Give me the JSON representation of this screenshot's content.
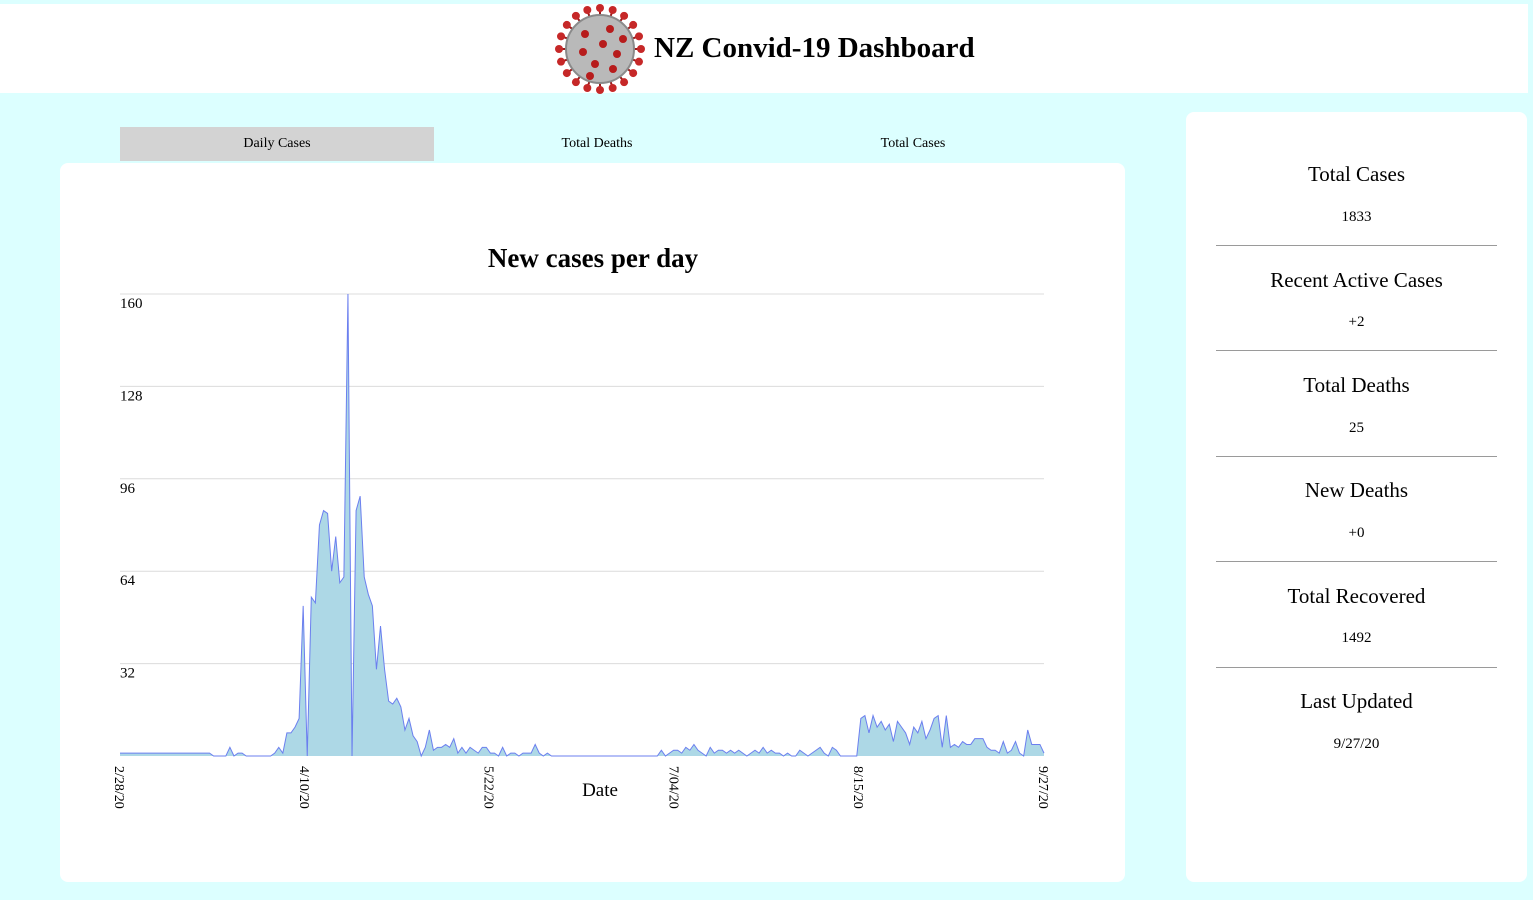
{
  "header": {
    "title": "NZ Convid-19 Dashboard",
    "logo_icon": "coronavirus-icon"
  },
  "tabs": [
    {
      "label": "Daily Cases",
      "active": true
    },
    {
      "label": "Total Deaths",
      "active": false
    },
    {
      "label": "Total Cases",
      "active": false
    }
  ],
  "stats": [
    {
      "label": "Total Cases",
      "value": "1833"
    },
    {
      "label": "Recent Active Cases",
      "value": "+2"
    },
    {
      "label": "Total Deaths",
      "value": "25"
    },
    {
      "label": "New Deaths",
      "value": "+0"
    },
    {
      "label": "Total Recovered",
      "value": "1492"
    },
    {
      "label": "Last Updated",
      "value": "9/27/20"
    }
  ],
  "colors": {
    "page_background": "#dcffff",
    "area_fill": "#add8e6",
    "area_line": "#6b7fef",
    "active_tab": "#d3d3d3"
  },
  "chart_data": {
    "type": "area",
    "title": "New cases per day",
    "xlabel": "Date",
    "ylabel": "",
    "ylim": [
      0,
      160
    ],
    "yticks": [
      32,
      64,
      96,
      128,
      160
    ],
    "xticks": [
      "2/28/20",
      "4/10/20",
      "5/22/20",
      "7/04/20",
      "8/15/20",
      "9/27/20"
    ],
    "grid": true,
    "x_start": "2020-02-28",
    "x_end": "2020-09-27",
    "series": [
      {
        "values": [
          1,
          1,
          1,
          1,
          1,
          1,
          1,
          1,
          1,
          1,
          1,
          1,
          1,
          1,
          1,
          1,
          1,
          1,
          1,
          1,
          1,
          1,
          1,
          0,
          0,
          0,
          0,
          3,
          0,
          1,
          1,
          0,
          0,
          0,
          0,
          0,
          0,
          0,
          1,
          3,
          1,
          8,
          8,
          10,
          13,
          52,
          0,
          55,
          53,
          80,
          85,
          84,
          64,
          76,
          60,
          62,
          160,
          0,
          85,
          90,
          62,
          56,
          52,
          30,
          45,
          30,
          19,
          18,
          20,
          17,
          9,
          13,
          7,
          5,
          0,
          3,
          9,
          2,
          3,
          3,
          4,
          3,
          6,
          1,
          3,
          1,
          3,
          2,
          1,
          3,
          3,
          1,
          1,
          0,
          3,
          0,
          1,
          1,
          0,
          1,
          1,
          1,
          4,
          1,
          0,
          1,
          0,
          0,
          0,
          0,
          0,
          0,
          0,
          0,
          0,
          0,
          0,
          0,
          0,
          0,
          0,
          0,
          0,
          0,
          0,
          0,
          0,
          0,
          0,
          0,
          0,
          0,
          0,
          2,
          0,
          1,
          2,
          2,
          1,
          3,
          2,
          4,
          2,
          1,
          0,
          3,
          1,
          2,
          2,
          1,
          2,
          1,
          2,
          1,
          0,
          1,
          2,
          1,
          3,
          1,
          2,
          1,
          1,
          0,
          1,
          0,
          0,
          2,
          1,
          0,
          1,
          2,
          3,
          1,
          0,
          3,
          2,
          0,
          0,
          0,
          0,
          0,
          13,
          14,
          8,
          14,
          10,
          12,
          9,
          11,
          5,
          12,
          10,
          8,
          4,
          10,
          8,
          12,
          6,
          9,
          13,
          14,
          3,
          14,
          3,
          4,
          3,
          5,
          4,
          4,
          6,
          6,
          6,
          3,
          2,
          2,
          1,
          5,
          1,
          2,
          5,
          1,
          0,
          9,
          4,
          4,
          4,
          1
        ]
      }
    ]
  }
}
